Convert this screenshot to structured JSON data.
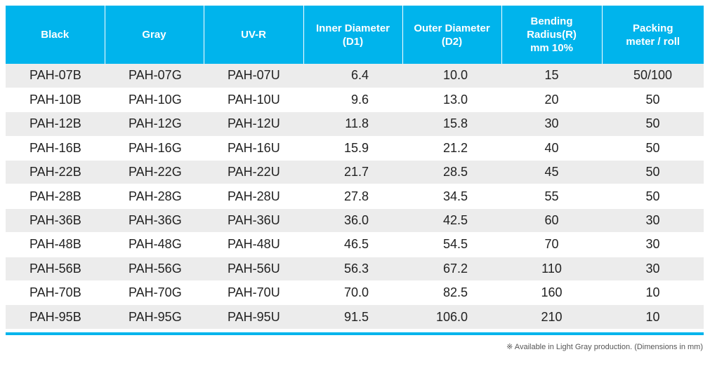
{
  "table": {
    "headers": [
      {
        "line1": "Black",
        "line2": ""
      },
      {
        "line1": "Gray",
        "line2": ""
      },
      {
        "line1": "UV-R",
        "line2": ""
      },
      {
        "line1": "Inner Diameter",
        "line2": "(D1)"
      },
      {
        "line1": "Outer Diameter",
        "line2": "(D2)"
      },
      {
        "line1": "Bending Radius(R)",
        "line2": "mm 10%"
      },
      {
        "line1": "Packing",
        "line2": "meter / roll"
      }
    ],
    "rows": [
      [
        "PAH-07B",
        "PAH-07G",
        "PAH-07U",
        "6.4",
        "10.0",
        "15",
        "50/100"
      ],
      [
        "PAH-10B",
        "PAH-10G",
        "PAH-10U",
        "9.6",
        "13.0",
        "20",
        "50"
      ],
      [
        "PAH-12B",
        "PAH-12G",
        "PAH-12U",
        "11.8",
        "15.8",
        "30",
        "50"
      ],
      [
        "PAH-16B",
        "PAH-16G",
        "PAH-16U",
        "15.9",
        "21.2",
        "40",
        "50"
      ],
      [
        "PAH-22B",
        "PAH-22G",
        "PAH-22U",
        "21.7",
        "28.5",
        "45",
        "50"
      ],
      [
        "PAH-28B",
        "PAH-28G",
        "PAH-28U",
        "27.8",
        "34.5",
        "55",
        "50"
      ],
      [
        "PAH-36B",
        "PAH-36G",
        "PAH-36U",
        "36.0",
        "42.5",
        "60",
        "30"
      ],
      [
        "PAH-48B",
        "PAH-48G",
        "PAH-48U",
        "46.5",
        "54.5",
        "70",
        "30"
      ],
      [
        "PAH-56B",
        "PAH-56G",
        "PAH-56U",
        "56.3",
        "67.2",
        "110",
        "30"
      ],
      [
        "PAH-70B",
        "PAH-70G",
        "PAH-70U",
        "70.0",
        "82.5",
        "160",
        "10"
      ],
      [
        "PAH-95B",
        "PAH-95G",
        "PAH-95U",
        "91.5",
        "106.0",
        "210",
        "10"
      ]
    ]
  },
  "footnote": "※ Available in Light Gray production.  (Dimensions in mm)",
  "colors": {
    "header_bg": "#00b4ec",
    "header_text": "#ffffff",
    "row_stripe": "#ececec",
    "accent_bar": "#00b4ec"
  }
}
